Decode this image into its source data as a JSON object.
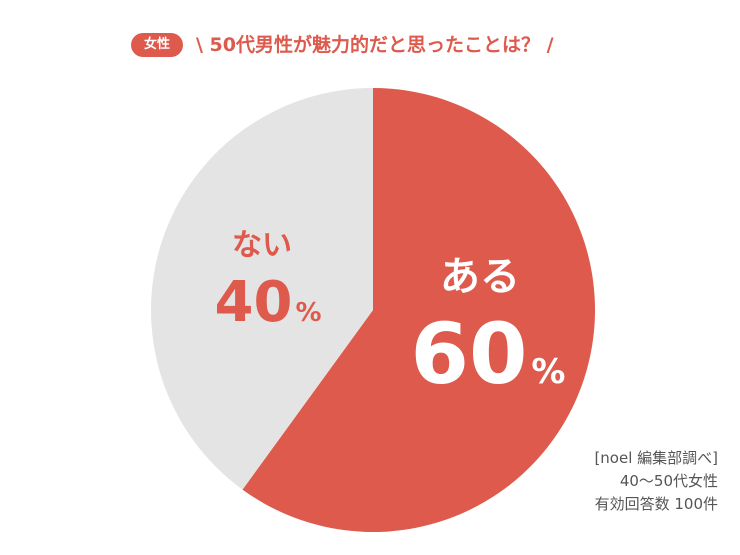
{
  "header": {
    "badge_label": "女性",
    "title": "\\ 50代男性が魅力的だと思ったことは？ /"
  },
  "colors": {
    "accent": "#dd5a4c",
    "slice_no": "#e5e4e4",
    "text_on_accent": "#ffffff"
  },
  "chart_data": {
    "type": "pie",
    "title": "",
    "start_angle_deg": 0,
    "direction": "clockwise",
    "slices": [
      {
        "label": "ある",
        "value": 60,
        "value_text": "60",
        "unit": "%"
      },
      {
        "label": "ない",
        "value": 40,
        "value_text": "40",
        "unit": "%"
      }
    ]
  },
  "source": {
    "line1": "[noel 編集部調べ]",
    "line2": "40〜50代女性",
    "line3": "有効回答数 100件"
  }
}
